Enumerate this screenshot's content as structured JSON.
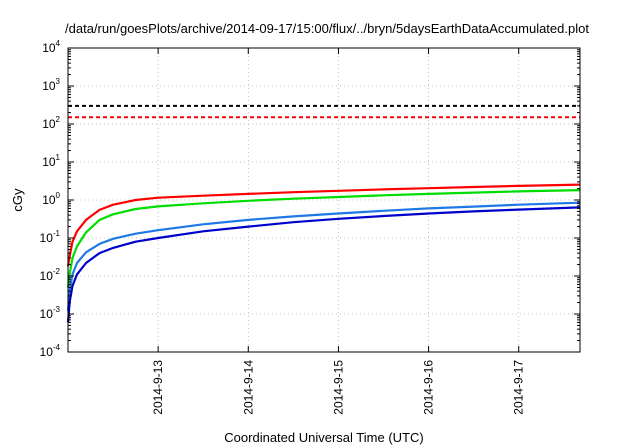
{
  "chart_data": {
    "type": "line",
    "title": "/data/run/goesPlots/archive/2014-09-17/15:00/flux/../bryn/5daysEarthDataAccumulated.plot",
    "xlabel": "Coordinated Universal Time (UTC)",
    "ylabel": "cGy",
    "y_scale": "log",
    "ylim": [
      0.0001,
      10000
    ],
    "xlim": [
      0,
      5.68
    ],
    "x_unit": "days since 2014-09-12 00:00 UTC",
    "grid": true,
    "legend": "none",
    "x_ticks": [
      {
        "value": 1,
        "label": "2014-9-13"
      },
      {
        "value": 2,
        "label": "2014-9-14"
      },
      {
        "value": 3,
        "label": "2014-9-15"
      },
      {
        "value": 4,
        "label": "2014-9-16"
      },
      {
        "value": 5,
        "label": "2014-9-17"
      }
    ],
    "y_ticks": [
      {
        "value": 0.0001,
        "base": "10",
        "exp": "-4"
      },
      {
        "value": 0.001,
        "base": "10",
        "exp": "-3"
      },
      {
        "value": 0.01,
        "base": "10",
        "exp": "-2"
      },
      {
        "value": 0.1,
        "base": "10",
        "exp": "-1"
      },
      {
        "value": 1,
        "base": "10",
        "exp": "0"
      },
      {
        "value": 10,
        "base": "10",
        "exp": "1"
      },
      {
        "value": 100,
        "base": "10",
        "exp": "2"
      },
      {
        "value": 1000,
        "base": "10",
        "exp": "3"
      },
      {
        "value": 10000,
        "base": "10",
        "exp": "4"
      }
    ],
    "reference_lines": [
      {
        "y": 300,
        "color": "#000000",
        "dashed": true
      },
      {
        "y": 150,
        "color": "#ff0000",
        "dashed": true
      }
    ],
    "series": [
      {
        "color": "#ff0000",
        "x": [
          0.0,
          0.02,
          0.05,
          0.1,
          0.2,
          0.35,
          0.5,
          0.75,
          1.0,
          1.5,
          2.0,
          2.5,
          3.0,
          3.5,
          4.0,
          4.5,
          5.0,
          5.68
        ],
        "y": [
          0.018,
          0.035,
          0.08,
          0.15,
          0.3,
          0.55,
          0.75,
          1.0,
          1.15,
          1.3,
          1.45,
          1.6,
          1.75,
          1.9,
          2.05,
          2.2,
          2.35,
          2.55
        ]
      },
      {
        "color": "#00dd00",
        "x": [
          0.0,
          0.02,
          0.05,
          0.1,
          0.2,
          0.35,
          0.5,
          0.75,
          1.0,
          1.5,
          2.0,
          2.5,
          3.0,
          3.5,
          4.0,
          4.5,
          5.0,
          5.68
        ],
        "y": [
          0.005,
          0.012,
          0.03,
          0.06,
          0.14,
          0.3,
          0.42,
          0.58,
          0.68,
          0.82,
          0.95,
          1.08,
          1.2,
          1.33,
          1.45,
          1.57,
          1.68,
          1.82
        ]
      },
      {
        "color": "#1e78e6",
        "x": [
          0.0,
          0.02,
          0.05,
          0.1,
          0.2,
          0.35,
          0.5,
          0.75,
          1.0,
          1.5,
          2.0,
          2.5,
          3.0,
          3.5,
          4.0,
          4.5,
          5.0,
          5.68
        ],
        "y": [
          0.0012,
          0.0045,
          0.011,
          0.022,
          0.042,
          0.07,
          0.095,
          0.13,
          0.16,
          0.23,
          0.3,
          0.37,
          0.44,
          0.52,
          0.6,
          0.67,
          0.75,
          0.85
        ]
      },
      {
        "color": "#0000cc",
        "x": [
          0.0,
          0.02,
          0.05,
          0.1,
          0.2,
          0.35,
          0.5,
          0.75,
          1.0,
          1.5,
          2.0,
          2.5,
          3.0,
          3.5,
          4.0,
          4.5,
          5.0,
          5.68
        ],
        "y": [
          0.0006,
          0.0022,
          0.0055,
          0.011,
          0.022,
          0.04,
          0.055,
          0.08,
          0.1,
          0.15,
          0.2,
          0.26,
          0.32,
          0.38,
          0.44,
          0.5,
          0.56,
          0.64
        ]
      }
    ]
  }
}
